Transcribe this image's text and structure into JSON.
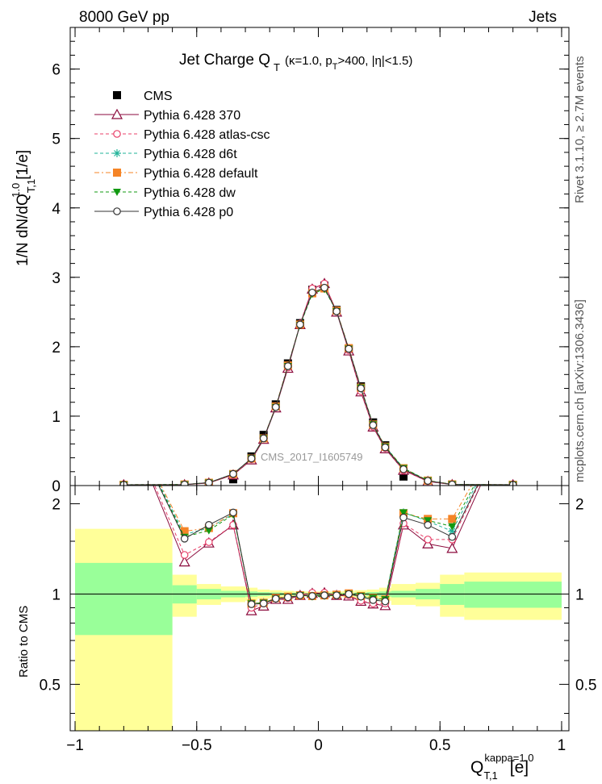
{
  "header": {
    "left": "8000 GeV pp",
    "right": "Jets"
  },
  "title": {
    "main": "Jet Charge Q",
    "main_sub": "T",
    "cond_a": "(κ=1.0, p",
    "cond_a_sub": "T",
    "cond_b": ">400, |η|<1.5)"
  },
  "side_labels": {
    "rivet": "Rivet 3.1.10, ≥ 2.7M events",
    "mcplots": "mcplots.cern.ch [arXiv:1306.3436]"
  },
  "watermark": "CMS_2017_I1605749",
  "axes": {
    "ylabel_main": "1/N dN/dQ",
    "ylabel_main_sup": "1.0",
    "ylabel_main_sub": "T,1",
    "ylabel_main_unit": "[1/e]",
    "ylabel_ratio": "Ratio to CMS",
    "xlabel": "Q",
    "xlabel_sup": "kappa=1.0",
    "xlabel_sub": "T,1",
    "xlabel_unit": "[e]"
  },
  "colors": {
    "CMS": "#000000",
    "p370": "#8b0a3c",
    "atlas": "#e8416a",
    "d6t": "#22b39a",
    "default": "#f58426",
    "dw": "#119911",
    "p0": "#333333",
    "band_inner": "#99ff99",
    "band_outer": "#ffff99"
  },
  "chart_data": {
    "type": "line",
    "x": [
      -0.8,
      -0.55,
      -0.45,
      -0.35,
      -0.275,
      -0.225,
      -0.175,
      -0.125,
      -0.075,
      -0.025,
      0.025,
      0.075,
      0.125,
      0.175,
      0.225,
      0.275,
      0.35,
      0.45,
      0.55,
      0.8
    ],
    "x_edges": [
      -1.0,
      -0.6,
      -0.5,
      -0.4,
      -0.3,
      -0.25,
      -0.2,
      -0.15,
      -0.1,
      -0.05,
      0.0,
      0.05,
      0.1,
      0.15,
      0.2,
      0.25,
      0.3,
      0.4,
      0.5,
      0.6,
      1.0
    ],
    "xlim": [
      -1.02,
      1.03
    ],
    "ylim_main": [
      0,
      6.6
    ],
    "ylim_ratio": [
      0.35,
      2.3
    ],
    "xticks": [
      -1,
      -0.5,
      0,
      0.5,
      1
    ],
    "xtick_labels": [
      "−1",
      "−0.5",
      "0",
      "0.5",
      "1"
    ],
    "yticks_main": [
      0,
      1,
      2,
      3,
      4,
      5,
      6
    ],
    "ytick_labels_main": [
      "0",
      "1",
      "2",
      "3",
      "4",
      "5",
      "6"
    ],
    "yticks_ratio": [
      0.5,
      1,
      2
    ],
    "ytick_labels_ratio": [
      "0.5",
      "1",
      "2"
    ],
    "grid": false,
    "legend_position": "top-left",
    "ratio_bands": {
      "inner_half": [
        0.27,
        0.07,
        0.04,
        0.025,
        0.02,
        0.015,
        0.012,
        0.01,
        0.01,
        0.008,
        0.008,
        0.01,
        0.01,
        0.012,
        0.015,
        0.02,
        0.025,
        0.04,
        0.08,
        0.1
      ],
      "outer_half": [
        0.65,
        0.16,
        0.08,
        0.06,
        0.05,
        0.035,
        0.03,
        0.025,
        0.02,
        0.02,
        0.02,
        0.02,
        0.025,
        0.03,
        0.035,
        0.05,
        0.08,
        0.09,
        0.16,
        0.18
      ]
    },
    "series": [
      {
        "name": "CMS",
        "key": "CMS",
        "style": {
          "marker": "square-filled",
          "line": "none"
        },
        "values": [
          0.003,
          0.01,
          0.025,
          0.09,
          0.42,
          0.73,
          1.17,
          1.76,
          2.34,
          2.82,
          2.88,
          2.53,
          1.97,
          1.43,
          0.91,
          0.58,
          0.13,
          0.04,
          0.01,
          0.003
        ]
      },
      {
        "name": "Pythia 6.428 370",
        "key": "p370",
        "style": {
          "marker": "triangle-open",
          "line": "solid"
        },
        "values": [
          0.012,
          0.013,
          0.037,
          0.153,
          0.37,
          0.666,
          1.12,
          1.69,
          2.32,
          2.83,
          2.91,
          2.5,
          1.94,
          1.35,
          0.844,
          0.53,
          0.22,
          0.059,
          0.0142,
          0.012
        ],
        "ratio": [
          4.0,
          1.28,
          1.48,
          1.7,
          0.88,
          0.912,
          0.96,
          0.96,
          0.99,
          1.005,
          1.01,
          0.99,
          0.985,
          0.946,
          0.927,
          0.915,
          1.7,
          1.47,
          1.42,
          4.0
        ]
      },
      {
        "name": "Pythia 6.428 atlas-csc",
        "key": "atlas",
        "style": {
          "marker": "circle-open",
          "line": "dashed"
        },
        "values": [
          0.012,
          0.014,
          0.037,
          0.153,
          0.38,
          0.68,
          1.13,
          1.7,
          2.33,
          2.84,
          2.91,
          2.51,
          1.95,
          1.36,
          0.85,
          0.54,
          0.22,
          0.061,
          0.015,
          0.012
        ],
        "ratio": [
          4.0,
          1.35,
          1.49,
          1.7,
          0.9,
          0.93,
          0.965,
          0.968,
          0.995,
          1.01,
          1.01,
          0.99,
          0.99,
          0.95,
          0.93,
          0.93,
          1.72,
          1.52,
          1.52,
          4.0
        ]
      },
      {
        "name": "Pythia 6.428 d6t",
        "key": "d6t",
        "style": {
          "marker": "star",
          "line": "dashed"
        },
        "values": [
          0.012,
          0.015,
          0.041,
          0.166,
          0.39,
          0.68,
          1.13,
          1.72,
          2.32,
          2.78,
          2.84,
          2.51,
          1.97,
          1.4,
          0.87,
          0.56,
          0.25,
          0.071,
          0.016,
          0.012
        ],
        "ratio": [
          4.0,
          1.58,
          1.66,
          1.85,
          0.93,
          0.94,
          0.965,
          0.975,
          0.99,
          0.985,
          0.99,
          0.99,
          1.0,
          0.98,
          0.96,
          0.96,
          1.87,
          1.75,
          1.62,
          4.0
        ]
      },
      {
        "name": "Pythia 6.428 default",
        "key": "default",
        "style": {
          "marker": "square-filled",
          "line": "dashdot"
        },
        "values": [
          0.012,
          0.016,
          0.041,
          0.166,
          0.39,
          0.68,
          1.14,
          1.73,
          2.32,
          2.77,
          2.84,
          2.52,
          1.98,
          1.41,
          0.88,
          0.56,
          0.25,
          0.072,
          0.018,
          0.012
        ],
        "ratio": [
          4.0,
          1.62,
          1.66,
          1.86,
          0.93,
          0.935,
          0.97,
          0.98,
          0.99,
          0.985,
          0.99,
          0.995,
          1.005,
          0.985,
          0.97,
          0.96,
          1.86,
          1.78,
          1.78,
          4.0
        ]
      },
      {
        "name": "Pythia 6.428 dw",
        "key": "dw",
        "style": {
          "marker": "triangle-down-filled",
          "line": "dashed"
        },
        "values": [
          0.012,
          0.015,
          0.041,
          0.165,
          0.39,
          0.68,
          1.13,
          1.72,
          2.31,
          2.76,
          2.83,
          2.51,
          1.97,
          1.41,
          0.88,
          0.56,
          0.25,
          0.072,
          0.017,
          0.012
        ],
        "ratio": [
          4.0,
          1.55,
          1.63,
          1.84,
          0.93,
          0.935,
          0.965,
          0.975,
          0.99,
          0.98,
          0.985,
          0.99,
          1.0,
          0.985,
          0.97,
          0.96,
          1.87,
          1.76,
          1.68,
          4.0
        ]
      },
      {
        "name": "Pythia 6.428 p0",
        "key": "p0",
        "style": {
          "marker": "circle-open",
          "line": "solid"
        },
        "values": [
          0.012,
          0.015,
          0.042,
          0.168,
          0.39,
          0.68,
          1.13,
          1.72,
          2.32,
          2.78,
          2.85,
          2.51,
          1.97,
          1.4,
          0.87,
          0.55,
          0.235,
          0.068,
          0.016,
          0.012
        ],
        "ratio": [
          4.0,
          1.53,
          1.7,
          1.87,
          0.925,
          0.93,
          0.965,
          0.975,
          0.99,
          0.985,
          0.99,
          0.99,
          1.0,
          0.98,
          0.955,
          0.945,
          1.8,
          1.7,
          1.55,
          4.0
        ]
      }
    ]
  }
}
